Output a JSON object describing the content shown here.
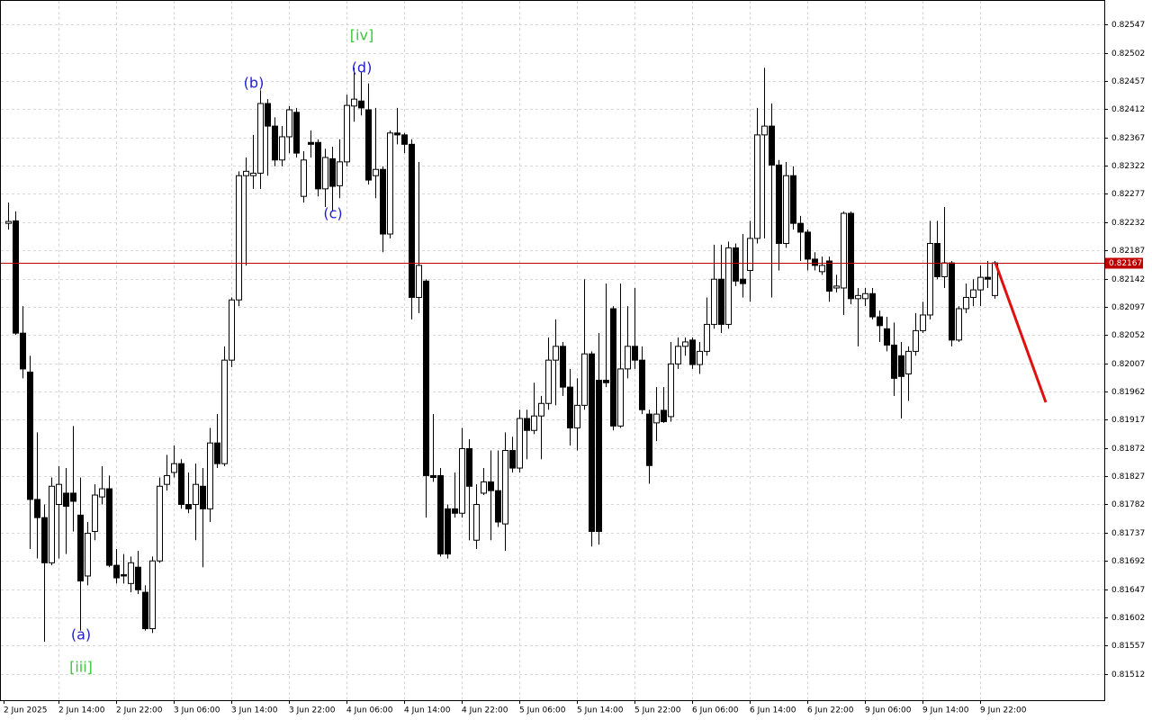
{
  "chart_data": {
    "type": "candlestick",
    "current_price": 0.82167,
    "current_price_color": "#c00000",
    "bull_color": "#ffffff",
    "bear_color": "#000000",
    "ylim": [
      0.8147,
      0.82586
    ],
    "yticks": [
      0.82547,
      0.82502,
      0.82457,
      0.82412,
      0.82367,
      0.82322,
      0.82277,
      0.82232,
      0.82187,
      0.82142,
      0.82097,
      0.82052,
      0.82007,
      0.81962,
      0.81917,
      0.81872,
      0.81827,
      0.81782,
      0.81737,
      0.81692,
      0.81647,
      0.81602,
      0.81557,
      0.81512
    ],
    "grid": true,
    "annotations": [
      {
        "text": "(a)",
        "color": "#1f1fd0"
      },
      {
        "text": "[iii]",
        "color": "#3cc83c"
      },
      {
        "text": "(b)",
        "color": "#1f1fd0"
      },
      {
        "text": "(c)",
        "color": "#1f1fd0"
      },
      {
        "text": "(d)",
        "color": "#1f1fd0"
      },
      {
        "text": "[iv]",
        "color": "#3cc83c"
      }
    ],
    "categories": [
      "2 Jun 2025",
      null,
      null,
      null,
      null,
      null,
      null,
      "2 Jun 14:00",
      null,
      null,
      null,
      null,
      null,
      null,
      null,
      "2 Jun 22:00",
      null,
      null,
      null,
      null,
      null,
      null,
      null,
      "3 Jun 06:00",
      null,
      null,
      null,
      null,
      null,
      null,
      null,
      "3 Jun 14:00",
      null,
      null,
      null,
      null,
      null,
      null,
      null,
      "3 Jun 22:00",
      null,
      null,
      null,
      null,
      null,
      null,
      null,
      "4 Jun 06:00",
      null,
      null,
      null,
      null,
      null,
      null,
      null,
      "4 Jun 14:00",
      null,
      null,
      null,
      null,
      null,
      null,
      null,
      "4 Jun 22:00",
      null,
      null,
      null,
      null,
      null,
      null,
      null,
      "5 Jun 06:00",
      null,
      null,
      null,
      null,
      null,
      null,
      null,
      "5 Jun 14:00",
      null,
      null,
      null,
      null,
      null,
      null,
      null,
      "5 Jun 22:00",
      null,
      null,
      null,
      null,
      null,
      null,
      null,
      "6 Jun 06:00",
      null,
      null,
      null,
      null,
      null,
      null,
      null,
      "6 Jun 14:00",
      null,
      null,
      null,
      null,
      null,
      null,
      null,
      "6 Jun 22:00",
      null,
      null,
      null,
      null,
      null,
      null,
      null,
      "9 Jun 06:00",
      null,
      null,
      null,
      null,
      null,
      null,
      null,
      "9 Jun 14:00",
      null,
      null,
      null,
      null,
      null,
      null,
      null,
      "9 Jun 22:00",
      null,
      null
    ],
    "ohlc": [
      [
        0.8223,
        0.82263,
        0.8222,
        0.82233
      ],
      [
        0.82234,
        0.82249,
        0.82052,
        0.82055
      ],
      [
        0.82055,
        0.82098,
        0.81983,
        0.81998
      ],
      [
        0.81993,
        0.82019,
        0.81711,
        0.8179
      ],
      [
        0.8179,
        0.81897,
        0.81696,
        0.81761
      ],
      [
        0.81761,
        0.81782,
        0.81563,
        0.81689
      ],
      [
        0.81689,
        0.81825,
        0.81685,
        0.81811
      ],
      [
        0.81782,
        0.81843,
        0.81696,
        0.81814
      ],
      [
        0.818,
        0.8184,
        0.81703,
        0.81779
      ],
      [
        0.818,
        0.81907,
        0.81739,
        0.81787
      ],
      [
        0.81765,
        0.81825,
        0.81581,
        0.8166
      ],
      [
        0.81668,
        0.81754,
        0.81653,
        0.81736
      ],
      [
        0.81739,
        0.81814,
        0.81725,
        0.81797
      ],
      [
        0.81794,
        0.81843,
        0.81782,
        0.81807
      ],
      [
        0.81807,
        0.81828,
        0.81682,
        0.81685
      ],
      [
        0.81685,
        0.81711,
        0.81656,
        0.81665
      ],
      [
        0.8167,
        0.81703,
        0.81656,
        0.81668
      ],
      [
        0.81656,
        0.81699,
        0.81642,
        0.81689
      ],
      [
        0.81682,
        0.81708,
        0.81639,
        0.81646
      ],
      [
        0.81642,
        0.81653,
        0.81581,
        0.81584
      ],
      [
        0.81584,
        0.81699,
        0.81577,
        0.81692
      ],
      [
        0.81692,
        0.81825,
        0.81689,
        0.81811
      ],
      [
        0.81814,
        0.81861,
        0.81804,
        0.81828
      ],
      [
        0.81833,
        0.81876,
        0.81825,
        0.81847
      ],
      [
        0.81847,
        0.81854,
        0.81775,
        0.81782
      ],
      [
        0.81782,
        0.81833,
        0.81768,
        0.81775
      ],
      [
        0.81782,
        0.81847,
        0.81725,
        0.81814
      ],
      [
        0.81811,
        0.8184,
        0.81682,
        0.81775
      ],
      [
        0.81775,
        0.81904,
        0.81754,
        0.8188
      ],
      [
        0.8188,
        0.81926,
        0.8184,
        0.81847
      ],
      [
        0.81847,
        0.82034,
        0.81843,
        0.82012
      ],
      [
        0.82012,
        0.82112,
        0.82001,
        0.82108
      ],
      [
        0.82108,
        0.82313,
        0.82098,
        0.82306
      ],
      [
        0.82306,
        0.82335,
        0.82163,
        0.82313
      ],
      [
        0.82306,
        0.82371,
        0.82285,
        0.8231
      ],
      [
        0.8231,
        0.82442,
        0.82285,
        0.82421
      ],
      [
        0.82421,
        0.82428,
        0.82306,
        0.82385
      ],
      [
        0.82385,
        0.82399,
        0.82321,
        0.82331
      ],
      [
        0.82331,
        0.82385,
        0.82321,
        0.82368
      ],
      [
        0.82368,
        0.82417,
        0.82342,
        0.82411
      ],
      [
        0.82407,
        0.82414,
        0.82335,
        0.82342
      ],
      [
        0.82273,
        0.82345,
        0.82263,
        0.82331
      ],
      [
        0.82359,
        0.82378,
        0.82335,
        0.82356
      ],
      [
        0.82359,
        0.82364,
        0.82273,
        0.82285
      ],
      [
        0.82285,
        0.82349,
        0.82256,
        0.82335
      ],
      [
        0.82333,
        0.82352,
        0.82249,
        0.82289
      ],
      [
        0.8229,
        0.82364,
        0.8227,
        0.82328
      ],
      [
        0.82328,
        0.82435,
        0.82321,
        0.82418
      ],
      [
        0.82417,
        0.82478,
        0.82392,
        0.82428
      ],
      [
        0.82425,
        0.82471,
        0.82402,
        0.82414
      ],
      [
        0.82411,
        0.82453,
        0.82292,
        0.82299
      ],
      [
        0.82306,
        0.82414,
        0.8227,
        0.82316
      ],
      [
        0.82316,
        0.82321,
        0.82184,
        0.82213
      ],
      [
        0.82213,
        0.82378,
        0.82206,
        0.82374
      ],
      [
        0.82374,
        0.82414,
        0.82356,
        0.82371
      ],
      [
        0.82371,
        0.82374,
        0.82342,
        0.82356
      ],
      [
        0.82356,
        0.82364,
        0.82077,
        0.82112
      ],
      [
        0.82112,
        0.82328,
        0.82087,
        0.82163
      ],
      [
        0.82138,
        0.82141,
        0.81761,
        0.81828
      ],
      [
        0.81828,
        0.81926,
        0.81818,
        0.81825
      ],
      [
        0.81828,
        0.8184,
        0.81699,
        0.81703
      ],
      [
        0.81775,
        0.81782,
        0.81696,
        0.81703
      ],
      [
        0.81775,
        0.81833,
        0.81761,
        0.81768
      ],
      [
        0.81768,
        0.81904,
        0.81761,
        0.81871
      ],
      [
        0.81871,
        0.81886,
        0.81725,
        0.81811
      ],
      [
        0.81725,
        0.81814,
        0.81711,
        0.81782
      ],
      [
        0.818,
        0.8184,
        0.81797,
        0.81818
      ],
      [
        0.81818,
        0.81868,
        0.81725,
        0.81804
      ],
      [
        0.81804,
        0.81868,
        0.81746,
        0.81754
      ],
      [
        0.81751,
        0.81897,
        0.81708,
        0.81868
      ],
      [
        0.81868,
        0.8189,
        0.81833,
        0.8184
      ],
      [
        0.8184,
        0.81933,
        0.81833,
        0.81919
      ],
      [
        0.81919,
        0.81933,
        0.81854,
        0.819
      ],
      [
        0.819,
        0.81976,
        0.81894,
        0.81923
      ],
      [
        0.81923,
        0.81955,
        0.81854,
        0.81943
      ],
      [
        0.81943,
        0.82048,
        0.81933,
        0.82012
      ],
      [
        0.82012,
        0.82077,
        0.8194,
        0.82034
      ],
      [
        0.82034,
        0.82041,
        0.81955,
        0.81969
      ],
      [
        0.81969,
        0.81998,
        0.81876,
        0.81904
      ],
      [
        0.81904,
        0.81983,
        0.81868,
        0.8194
      ],
      [
        0.8194,
        0.82141,
        0.81933,
        0.82022
      ],
      [
        0.82022,
        0.82026,
        0.81715,
        0.81739
      ],
      [
        0.8198,
        0.82055,
        0.81718,
        0.81739
      ],
      [
        0.8198,
        0.82134,
        0.81969,
        0.81976
      ],
      [
        0.82094,
        0.82098,
        0.819,
        0.81907
      ],
      [
        0.81907,
        0.82134,
        0.81904,
        0.81998
      ],
      [
        0.81998,
        0.82098,
        0.81983,
        0.82034
      ],
      [
        0.82034,
        0.82127,
        0.81998,
        0.82012
      ],
      [
        0.82012,
        0.82034,
        0.81926,
        0.81933
      ],
      [
        0.81926,
        0.81933,
        0.81815,
        0.81844
      ],
      [
        0.81912,
        0.81969,
        0.81883,
        0.81926
      ],
      [
        0.81932,
        0.81969,
        0.81912,
        0.81914
      ],
      [
        0.81922,
        0.82041,
        0.81914,
        0.82006
      ],
      [
        0.82006,
        0.82048,
        0.81998,
        0.82034
      ],
      [
        0.82034,
        0.82048,
        0.82019,
        0.82041
      ],
      [
        0.82044,
        0.82048,
        0.81998,
        0.82005
      ],
      [
        0.82005,
        0.82041,
        0.8199,
        0.82026
      ],
      [
        0.82026,
        0.82112,
        0.82019,
        0.82069
      ],
      [
        0.82069,
        0.82196,
        0.82062,
        0.82141
      ],
      [
        0.82141,
        0.82196,
        0.82055,
        0.82069
      ],
      [
        0.82069,
        0.82201,
        0.82062,
        0.82191
      ],
      [
        0.82191,
        0.82198,
        0.8213,
        0.82138
      ],
      [
        0.82141,
        0.82213,
        0.82112,
        0.82134
      ],
      [
        0.82155,
        0.82234,
        0.82105,
        0.82206
      ],
      [
        0.82206,
        0.82414,
        0.82198,
        0.82371
      ],
      [
        0.82371,
        0.82478,
        0.82206,
        0.82385
      ],
      [
        0.82385,
        0.82421,
        0.82112,
        0.82323
      ],
      [
        0.82323,
        0.82331,
        0.82155,
        0.82198
      ],
      [
        0.82198,
        0.82328,
        0.82191,
        0.82306
      ],
      [
        0.82306,
        0.82321,
        0.8222,
        0.8223
      ],
      [
        0.8223,
        0.82242,
        0.8217,
        0.82216
      ],
      [
        0.82216,
        0.8222,
        0.82155,
        0.82173
      ],
      [
        0.82173,
        0.82184,
        0.82155,
        0.82163
      ],
      [
        0.82153,
        0.82177,
        0.82148,
        0.82163
      ],
      [
        0.8217,
        0.82177,
        0.82105,
        0.82122
      ],
      [
        0.82127,
        0.82148,
        0.8212,
        0.8213
      ],
      [
        0.82127,
        0.82249,
        0.82084,
        0.82246
      ],
      [
        0.82246,
        0.82249,
        0.82101,
        0.8211
      ],
      [
        0.8211,
        0.82127,
        0.82034,
        0.82115
      ],
      [
        0.8211,
        0.82127,
        0.82098,
        0.82118
      ],
      [
        0.82118,
        0.82127,
        0.82077,
        0.82081
      ],
      [
        0.82081,
        0.82091,
        0.82041,
        0.82067
      ],
      [
        0.82062,
        0.82081,
        0.82026,
        0.82036
      ],
      [
        0.82036,
        0.82072,
        0.81955,
        0.81983
      ],
      [
        0.82019,
        0.82041,
        0.81919,
        0.81986
      ],
      [
        0.8199,
        0.82034,
        0.81947,
        0.82026
      ],
      [
        0.82026,
        0.82087,
        0.82019,
        0.82059
      ],
      [
        0.82059,
        0.82105,
        0.82055,
        0.82084
      ],
      [
        0.82084,
        0.82234,
        0.82077,
        0.82198
      ],
      [
        0.82198,
        0.82234,
        0.82141,
        0.82145
      ],
      [
        0.82145,
        0.82256,
        0.82127,
        0.82167
      ],
      [
        0.82167,
        0.8217,
        0.82034,
        0.82044
      ],
      [
        0.82044,
        0.82098,
        0.82041,
        0.82094
      ],
      [
        0.82094,
        0.82134,
        0.82087,
        0.82112
      ],
      [
        0.82112,
        0.82141,
        0.82098,
        0.82124
      ],
      [
        0.82124,
        0.82163,
        0.82098,
        0.82144
      ],
      [
        0.82144,
        0.8217,
        0.82127,
        0.82141
      ],
      [
        0.82115,
        0.8217,
        0.8211,
        0.82167
      ]
    ]
  }
}
